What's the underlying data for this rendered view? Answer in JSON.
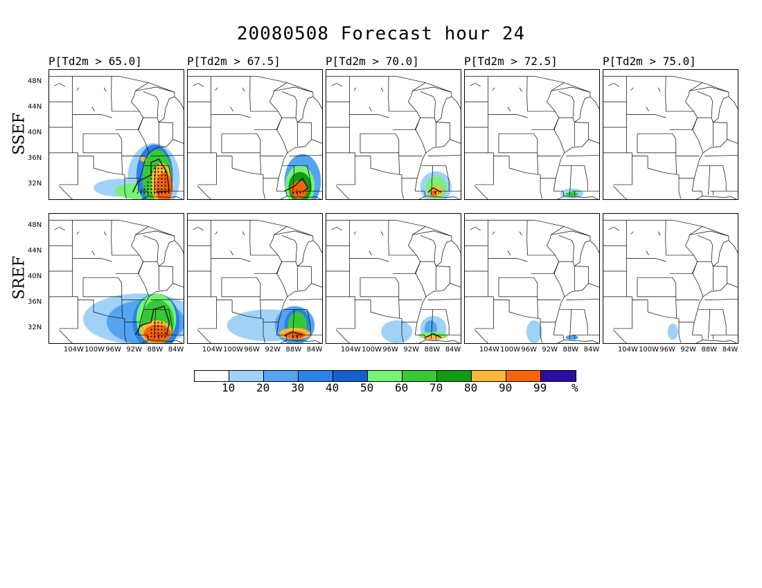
{
  "title": "20080508 Forecast hour 24",
  "columns": [
    {
      "label": "P[Td2m > 65.0]"
    },
    {
      "label": "P[Td2m > 67.5]"
    },
    {
      "label": "P[Td2m > 70.0]"
    },
    {
      "label": "P[Td2m > 72.5]"
    },
    {
      "label": "P[Td2m > 75.0]"
    }
  ],
  "rows": [
    {
      "label": "SSEF"
    },
    {
      "label": "SREF"
    }
  ],
  "lat_ticks": [
    "48N",
    "44N",
    "40N",
    "36N",
    "32N"
  ],
  "lon_ticks": [
    "104W",
    "100W",
    "96W",
    "92W",
    "88W",
    "84W"
  ],
  "colorbar": {
    "colors": [
      "#ffffff",
      "#a0d2f8",
      "#55a4f0",
      "#2c82e6",
      "#1560d0",
      "#76f276",
      "#36c936",
      "#119d11",
      "#fbb838",
      "#f8640c",
      "#2a0ea4"
    ],
    "labels": [
      "10",
      "20",
      "30",
      "40",
      "50",
      "60",
      "70",
      "80",
      "90",
      "99",
      "%"
    ]
  },
  "fields": {
    "SSEF": [
      [
        {
          "lon": -88.5,
          "lat": 33,
          "rx": 5,
          "ry": 5.5,
          "level": 1
        },
        {
          "lon": -95,
          "lat": 31.5,
          "rx": 5,
          "ry": 1.4,
          "level": 1
        },
        {
          "lon": -92,
          "lat": 31,
          "rx": 4,
          "ry": 1.2,
          "level": 5
        },
        {
          "lon": -88.3,
          "lat": 33.5,
          "rx": 3.5,
          "ry": 4.8,
          "level": 3
        },
        {
          "lon": -87.8,
          "lat": 33,
          "rx": 2.8,
          "ry": 4.5,
          "level": 6
        },
        {
          "lon": -87,
          "lat": 32.2,
          "rx": 2,
          "ry": 3.2,
          "level": 8
        },
        {
          "lon": -86.5,
          "lat": 31.5,
          "rx": 1.6,
          "ry": 2.4,
          "level": 9
        },
        {
          "lon": -90.5,
          "lat": 36,
          "rx": 0.6,
          "ry": 0.4,
          "level": 8
        }
      ],
      [
        {
          "lon": -86.5,
          "lat": 32.5,
          "rx": 3.5,
          "ry": 4.3,
          "level": 2
        },
        {
          "lon": -87,
          "lat": 31.8,
          "rx": 2.8,
          "ry": 3.2,
          "level": 5
        },
        {
          "lon": -87,
          "lat": 31.6,
          "rx": 2.2,
          "ry": 2.4,
          "level": 7
        },
        {
          "lon": -87.2,
          "lat": 31.2,
          "rx": 1.6,
          "ry": 1.4,
          "level": 9
        }
      ],
      [
        {
          "lon": -87.5,
          "lat": 31.6,
          "rx": 3,
          "ry": 2.5,
          "level": 1
        },
        {
          "lon": -87.5,
          "lat": 31.5,
          "rx": 2,
          "ry": 1.8,
          "level": 5
        },
        {
          "lon": -87.5,
          "lat": 31,
          "rx": 1.3,
          "ry": 0.9,
          "level": 8
        },
        {
          "lon": -88,
          "lat": 30.6,
          "rx": 0.6,
          "ry": 0.4,
          "level": 9
        }
      ],
      [
        {
          "lon": -88,
          "lat": 30.6,
          "rx": 2.2,
          "ry": 0.8,
          "level": 1
        },
        {
          "lon": -88,
          "lat": 30.5,
          "rx": 1.2,
          "ry": 0.35,
          "level": 6
        }
      ],
      []
    ],
    "SREF": [
      [
        {
          "lon": -91,
          "lat": 33.5,
          "rx": 11,
          "ry": 4,
          "level": 1
        },
        {
          "lon": -90,
          "lat": 33,
          "rx": 7.5,
          "ry": 3.5,
          "level": 2
        },
        {
          "lon": -88,
          "lat": 33,
          "rx": 4.5,
          "ry": 4.5,
          "level": 3
        },
        {
          "lon": -88,
          "lat": 33.5,
          "rx": 3.8,
          "ry": 4,
          "level": 5
        },
        {
          "lon": -87.8,
          "lat": 33,
          "rx": 3.2,
          "ry": 3.5,
          "level": 6
        },
        {
          "lon": -88,
          "lat": 31.5,
          "rx": 3,
          "ry": 1.8,
          "level": 8
        },
        {
          "lon": -87.8,
          "lat": 31.2,
          "rx": 2.6,
          "ry": 1.4,
          "level": 9
        }
      ],
      [
        {
          "lon": -93,
          "lat": 32.5,
          "rx": 8,
          "ry": 2.5,
          "level": 1
        },
        {
          "lon": -88,
          "lat": 32.5,
          "rx": 3.8,
          "ry": 3,
          "level": 2
        },
        {
          "lon": -87.5,
          "lat": 32.5,
          "rx": 2.5,
          "ry": 2.6,
          "level": 3
        },
        {
          "lon": -87.5,
          "lat": 32.5,
          "rx": 1.8,
          "ry": 2.1,
          "level": 6
        },
        {
          "lon": -88,
          "lat": 31.2,
          "rx": 3,
          "ry": 0.9,
          "level": 8
        },
        {
          "lon": -88,
          "lat": 31,
          "rx": 2,
          "ry": 0.6,
          "level": 9
        }
      ],
      [
        {
          "lon": -95,
          "lat": 31.5,
          "rx": 3,
          "ry": 1.8,
          "level": 1
        },
        {
          "lon": -88,
          "lat": 32,
          "rx": 2.5,
          "ry": 2,
          "level": 1
        },
        {
          "lon": -88.5,
          "lat": 32,
          "rx": 1.2,
          "ry": 1.3,
          "level": 2
        },
        {
          "lon": -88,
          "lat": 30.9,
          "rx": 2.8,
          "ry": 0.6,
          "level": 5
        },
        {
          "lon": -88,
          "lat": 30.6,
          "rx": 2,
          "ry": 0.35,
          "level": 8
        }
      ],
      [
        {
          "lon": -95.2,
          "lat": 31.5,
          "rx": 1.5,
          "ry": 1.8,
          "level": 1
        },
        {
          "lon": -88,
          "lat": 30.6,
          "rx": 1.2,
          "ry": 0.4,
          "level": 2
        }
      ],
      [
        {
          "lon": -95.2,
          "lat": 31.5,
          "rx": 1,
          "ry": 1.3,
          "level": 1
        }
      ]
    ]
  },
  "probability_contours": {
    "SSEF": [
      [
        {
          "points": [
            [
              -92.5,
              30.8
            ],
            [
              -91.5,
              32.5
            ],
            [
              -89,
              33.5
            ],
            [
              -89,
              35.5
            ],
            [
              -87.5,
              36
            ],
            [
              -86,
              34
            ],
            [
              -85.5,
              31
            ],
            [
              -88,
              30.8
            ]
          ]
        }
      ],
      [
        {
          "points": [
            [
              -90,
              31
            ],
            [
              -88,
              31.8
            ],
            [
              -86.5,
              33
            ],
            [
              -85.5,
              31.5
            ],
            [
              -86.5,
              30.8
            ]
          ]
        }
      ],
      [
        {
          "points": [
            [
              -89,
              30.8
            ],
            [
              -88,
              31.5
            ],
            [
              -86.5,
              30.8
            ]
          ]
        }
      ],
      [],
      []
    ],
    "SREF": [
      [
        {
          "points": [
            [
              -92,
              31
            ],
            [
              -91,
              32.5
            ],
            [
              -89,
              33
            ],
            [
              -88.5,
              35
            ],
            [
              -86.5,
              35.5
            ],
            [
              -85.5,
              33
            ],
            [
              -86,
              31
            ]
          ]
        }
      ],
      [
        {
          "points": [
            [
              -90,
              30.8
            ],
            [
              -88.5,
              31.5
            ],
            [
              -86.5,
              31
            ]
          ]
        }
      ],
      [
        {
          "points": [
            [
              -89.5,
              30.6
            ],
            [
              -88,
              31.2
            ],
            [
              -86.5,
              30.6
            ]
          ]
        }
      ],
      [],
      []
    ]
  },
  "stipple_regions": {
    "SSEF": [
      [
        {
          "points": [
            [
              -92,
              30.5
            ],
            [
              -90,
              32
            ],
            [
              -88.5,
              35
            ],
            [
              -86.5,
              35.5
            ],
            [
              -85.5,
              32
            ],
            [
              -85.5,
              30.5
            ]
          ]
        }
      ],
      [
        {
          "points": [
            [
              -89,
              30.5
            ],
            [
              -87.5,
              31.3
            ],
            [
              -86,
              30.5
            ]
          ]
        }
      ],
      [
        {
          "points": [
            [
              -88.5,
              30.5
            ],
            [
              -87.5,
              31
            ],
            [
              -86.5,
              30.5
            ]
          ]
        }
      ],
      [],
      []
    ],
    "SREF": [
      [
        {
          "points": [
            [
              -90,
              30.5
            ],
            [
              -88.5,
              33
            ],
            [
              -86.5,
              33.5
            ],
            [
              -86,
              30.5
            ]
          ]
        }
      ],
      [
        {
          "points": [
            [
              -89,
              30.5
            ],
            [
              -88,
              31.2
            ],
            [
              -86.5,
              30.5
            ]
          ]
        }
      ],
      [],
      [],
      []
    ]
  }
}
